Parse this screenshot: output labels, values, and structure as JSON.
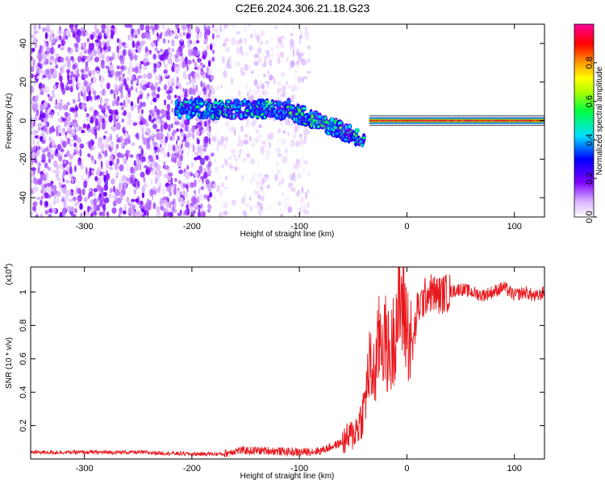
{
  "title": "C2E6.2024.306.21.18.G23",
  "colors": {
    "snr_line": "#e8191e",
    "axis": "#000000"
  },
  "chart_data": [
    {
      "type": "heatmap",
      "title": "C2E6.2024.306.21.18.G23",
      "xlabel": "Height of straight line (km)",
      "ylabel": "Frequency (Hz)",
      "xlim": [
        -350,
        128
      ],
      "ylim": [
        -50,
        50
      ],
      "xticks": [
        -300,
        -200,
        -100,
        0,
        100
      ],
      "yticks": [
        -40,
        -20,
        0,
        20,
        40
      ],
      "grid": false,
      "colorbar": {
        "label": "Normalized spectral amplitude",
        "range": [
          0,
          1
        ],
        "ticks": [
          0.0,
          0.2,
          0.4,
          0.6,
          0.8
        ],
        "colormap": "white-purple-blue-cyan-green-yellow-orange-red-magenta"
      },
      "features": [
        {
          "name": "noise",
          "x_range": [
            -350,
            -180
          ],
          "y_range": [
            -50,
            50
          ],
          "amplitude": 0.12
        },
        {
          "name": "noise",
          "x_range": [
            -180,
            -90
          ],
          "y_range": [
            -50,
            50
          ],
          "amplitude": 0.05
        },
        {
          "name": "signal",
          "x_range": [
            -215,
            -110
          ],
          "freq_center": 6,
          "amplitude": 0.4
        },
        {
          "name": "signal",
          "x_range": [
            -110,
            -40
          ],
          "freq_center_start": 6,
          "freq_center_end": -10,
          "amplitude": 0.45
        },
        {
          "name": "signal",
          "x_range": [
            -35,
            128
          ],
          "freq_center": 0,
          "amplitude": 0.98
        }
      ]
    },
    {
      "type": "line",
      "xlabel": "Height of straight line (km)",
      "ylabel": "SNR (10 * v/v)",
      "y_multiplier_label": "(x10",
      "y_multiplier_exp": "4",
      "xlim": [
        -350,
        128
      ],
      "ylim": [
        0,
        1.15
      ],
      "xticks": [
        -300,
        -200,
        -100,
        0,
        100
      ],
      "yticks": [
        0.2,
        0.4,
        0.6,
        0.8,
        1
      ],
      "grid": false,
      "series": [
        {
          "x": [
            -350,
            -300,
            -250,
            -200,
            -170,
            -160,
            -130,
            -100,
            -80,
            -60,
            -50,
            -45,
            -40,
            -35,
            -30,
            -25,
            -20,
            -15,
            -10,
            -5,
            0,
            5,
            10,
            20,
            30,
            40,
            50,
            60,
            70,
            80,
            90,
            100,
            110,
            120,
            128
          ],
          "values": [
            0.04,
            0.04,
            0.04,
            0.03,
            0.03,
            0.05,
            0.05,
            0.04,
            0.05,
            0.1,
            0.15,
            0.2,
            0.3,
            0.55,
            0.5,
            0.75,
            0.7,
            0.6,
            0.85,
            0.95,
            0.8,
            0.65,
            0.9,
            1.0,
            0.98,
            1.0,
            1.02,
            1.0,
            0.98,
            1.0,
            1.03,
            0.98,
            1.0,
            0.97,
            1.0
          ]
        }
      ]
    }
  ]
}
